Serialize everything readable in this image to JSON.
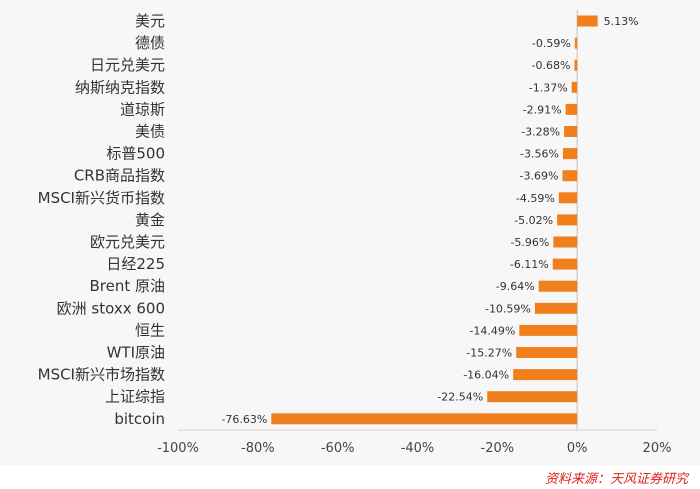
{
  "chart_data": {
    "type": "bar",
    "orientation": "horizontal",
    "categories": [
      "美元",
      "德债",
      "日元兑美元",
      "纳斯纳克指数",
      "道琼斯",
      "美债",
      "标普500",
      "CRB商品指数",
      "MSCI新兴货币指数",
      "黄金",
      "欧元兑美元",
      "日经225",
      "Brent 原油",
      "欧洲 stoxx 600",
      "恒生",
      "WTI原油",
      "MSCI新兴市场指数",
      "上证综指",
      "bitcoin"
    ],
    "values": [
      5.13,
      -0.59,
      -0.68,
      -1.37,
      -2.91,
      -3.28,
      -3.56,
      -3.69,
      -4.59,
      -5.02,
      -5.96,
      -6.11,
      -9.64,
      -10.59,
      -14.49,
      -15.27,
      -16.04,
      -22.54,
      -76.63
    ],
    "data_labels": [
      "5.13%",
      "-0.59%",
      "-0.68%",
      "-1.37%",
      "-2.91%",
      "-3.28%",
      "-3.56%",
      "-3.69%",
      "-4.59%",
      "-5.02%",
      "-5.96%",
      "-6.11%",
      "-9.64%",
      "-10.59%",
      "-14.49%",
      "-15.27%",
      "-16.04%",
      "-22.54%",
      "-76.63%"
    ],
    "xlim": [
      -100,
      20
    ],
    "xticks": [
      "-100%",
      "-80%",
      "-60%",
      "-40%",
      "-20%",
      "0%",
      "20%"
    ],
    "xtick_values": [
      -100,
      -80,
      -60,
      -40,
      -20,
      0,
      20
    ],
    "bar_color": "#f07f1e",
    "grid": false,
    "legend": "none"
  },
  "source": "资料来源：天风证券研究"
}
